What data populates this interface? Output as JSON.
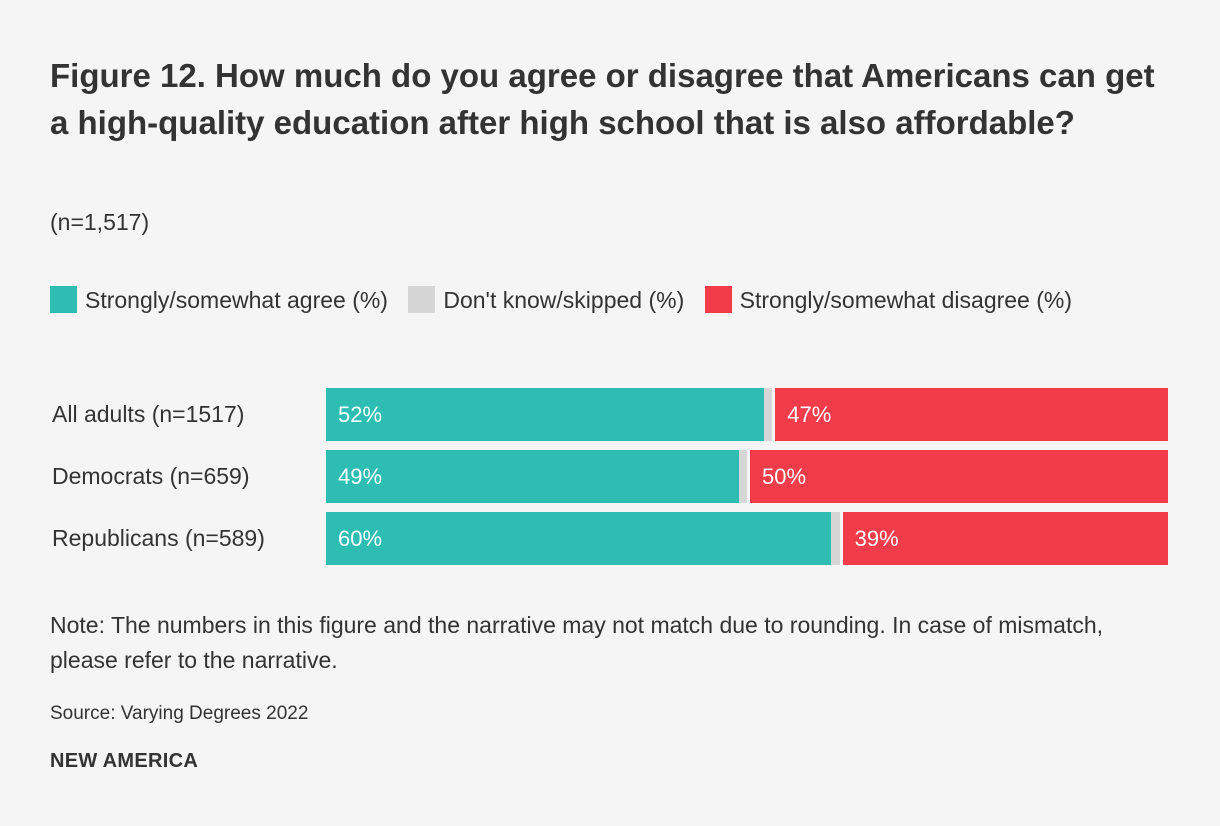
{
  "chart_data": {
    "type": "bar",
    "orientation": "horizontal",
    "stacked": true,
    "title": "Figure 12. How much do you agree or disagree that Americans can get a high-quality education after high school that is also affordable?",
    "subtitle": "(n=1,517)",
    "categories": [
      "All adults (n=1517)",
      "Democrats (n=659)",
      "Republicans (n=589)"
    ],
    "series": [
      {
        "name": "Strongly/somewhat agree (%)",
        "color": "#2ebdb3",
        "values": [
          52,
          49,
          60
        ],
        "labels": [
          "52%",
          "49%",
          "60%"
        ]
      },
      {
        "name": "Don't know/skipped (%)",
        "color": "#d6d6d6",
        "values": [
          1,
          1,
          1
        ],
        "labels": [
          "",
          "",
          ""
        ]
      },
      {
        "name": "Strongly/somewhat disagree (%)",
        "color": "#f23c4a",
        "values": [
          47,
          50,
          39
        ],
        "labels": [
          "47%",
          "50%",
          "39%"
        ]
      }
    ],
    "xlim": [
      0,
      100
    ],
    "legend": "top",
    "note": "Note: The numbers in this figure and the narrative may not match due to rounding. In case of mismatch, please refer to the narrative.",
    "source": "Source: Varying Degrees 2022",
    "brand": "NEW AMERICA"
  }
}
